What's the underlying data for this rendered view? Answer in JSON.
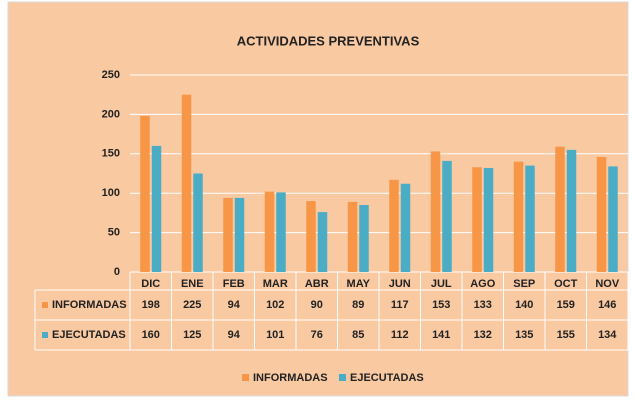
{
  "chart_data": {
    "type": "bar",
    "title": "ACTIVIDADES PREVENTIVAS",
    "categories": [
      "DIC",
      "ENE",
      "FEB",
      "MAR",
      "ABR",
      "MAY",
      "JUN",
      "JUL",
      "AGO",
      "SEP",
      "OCT",
      "NOV"
    ],
    "series": [
      {
        "name": "INFORMADAS",
        "color": "#f79646",
        "values": [
          198,
          225,
          94,
          102,
          90,
          89,
          117,
          153,
          133,
          140,
          159,
          146
        ]
      },
      {
        "name": "EJECUTADAS",
        "color": "#4bacc6",
        "values": [
          160,
          125,
          94,
          101,
          76,
          85,
          112,
          141,
          132,
          135,
          155,
          134
        ]
      }
    ],
    "ylim": [
      0,
      250
    ],
    "yticks": [
      0,
      50,
      100,
      150,
      200,
      250
    ],
    "grid": true,
    "legend": "bottom"
  }
}
